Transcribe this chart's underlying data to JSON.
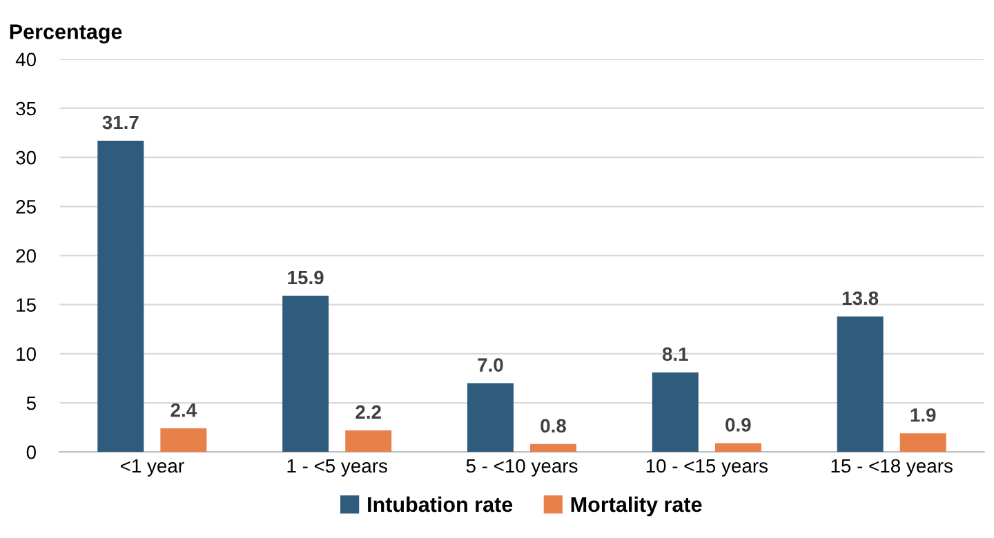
{
  "chart_data": {
    "type": "bar",
    "ylabel": "Percentage",
    "categories": [
      "<1 year",
      "1 - <5 years",
      "5 - <10 years",
      "10 - <15 years",
      "15 - <18 years"
    ],
    "series": [
      {
        "name": "Intubation rate",
        "color": "#2f5b7c",
        "values": [
          31.7,
          15.9,
          7.0,
          8.1,
          13.8
        ],
        "value_labels": [
          "31.7",
          "15.9",
          "7.0",
          "8.1",
          "13.8"
        ]
      },
      {
        "name": "Mortality rate",
        "color": "#e8804a",
        "values": [
          2.4,
          2.2,
          0.8,
          0.9,
          1.9
        ],
        "value_labels": [
          "2.4",
          "2.2",
          "0.8",
          "0.9",
          "1.9"
        ]
      }
    ],
    "ylim": [
      0,
      40
    ],
    "yticks": [
      0,
      5,
      10,
      15,
      20,
      25,
      30,
      35,
      40
    ],
    "grid": "y",
    "legend": "bottom"
  }
}
